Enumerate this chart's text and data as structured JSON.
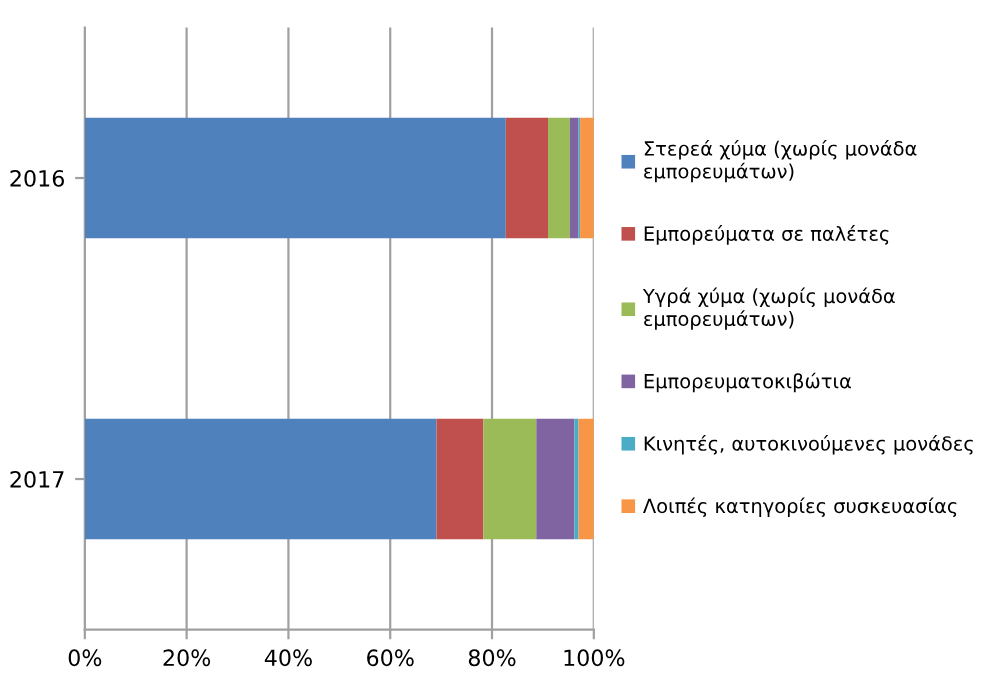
{
  "chart_data": {
    "type": "bar",
    "orientation": "horizontal",
    "stacked": true,
    "categories": [
      "2016",
      "2017"
    ],
    "series": [
      {
        "name": "Στερεά χύμα (χωρίς μονάδα\nεμπορευμάτων)",
        "color": "#4f81bd",
        "values": [
          82.7,
          69.1
        ]
      },
      {
        "name": "Εμπορεύματα σε παλέτες",
        "color": "#c0504d",
        "values": [
          8.3,
          9.2
        ]
      },
      {
        "name": "Υγρά χύμα (χωρίς μονάδα\nεμπορευμάτων)",
        "color": "#9bbb59",
        "values": [
          4.3,
          10.4
        ]
      },
      {
        "name": "Εμπορευματοκιβώτια",
        "color": "#8064a2",
        "values": [
          1.7,
          7.5
        ]
      },
      {
        "name": "Κινητές, αυτοκινούμενες μονάδες",
        "color": "#4bacc6",
        "values": [
          0.3,
          0.8
        ]
      },
      {
        "name": "Λοιπές κατηγορίες συσκευασίας",
        "color": "#f79646",
        "values": [
          2.7,
          3.0
        ]
      }
    ],
    "xlim": [
      0,
      100
    ],
    "xticks": [
      {
        "value": 0,
        "label": "0%"
      },
      {
        "value": 20,
        "label": "20%"
      },
      {
        "value": 40,
        "label": "40%"
      },
      {
        "value": 60,
        "label": "60%"
      },
      {
        "value": 80,
        "label": "80%"
      },
      {
        "value": 100,
        "label": "100%"
      }
    ],
    "grid": "x",
    "legend": "right"
  }
}
